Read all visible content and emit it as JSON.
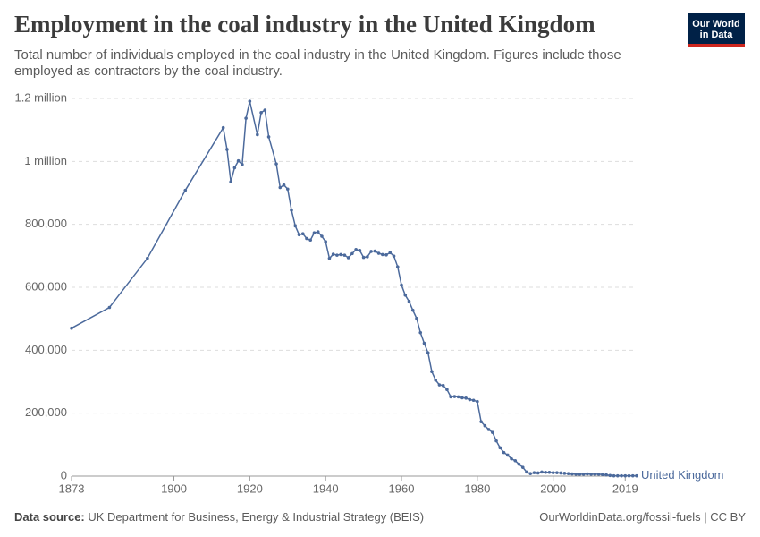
{
  "chart_data": {
    "type": "line",
    "title": "Employment in the coal industry in the United Kingdom",
    "subtitle": "Total number of individuals employed in the coal industry in the United Kingdom. Figures include those employed as contractors by the coal industry.",
    "logo": [
      "Our World",
      "in Data"
    ],
    "source_label": "Data source:",
    "source": "UK Department for Business, Energy & Industrial Strategy (BEIS)",
    "footer": "OurWorldinData.org/fossil-fuels | CC BY",
    "x": [
      1873,
      1883,
      1893,
      1903,
      1913,
      1914,
      1915,
      1916,
      1917,
      1918,
      1919,
      1920,
      1922,
      1923,
      1924,
      1925,
      1927,
      1928,
      1929,
      1930,
      1931,
      1932,
      1933,
      1934,
      1935,
      1936,
      1937,
      1938,
      1939,
      1940,
      1941,
      1942,
      1943,
      1944,
      1945,
      1946,
      1947,
      1948,
      1949,
      1950,
      1951,
      1952,
      1953,
      1954,
      1955,
      1956,
      1957,
      1958,
      1959,
      1960,
      1961,
      1962,
      1963,
      1964,
      1965,
      1966,
      1967,
      1968,
      1969,
      1970,
      1971,
      1972,
      1973,
      1974,
      1975,
      1976,
      1977,
      1978,
      1979,
      1980,
      1981,
      1982,
      1983,
      1984,
      1985,
      1986,
      1987,
      1988,
      1989,
      1990,
      1991,
      1992,
      1993,
      1994,
      1995,
      1996,
      1997,
      1998,
      1999,
      2000,
      2001,
      2002,
      2003,
      2004,
      2005,
      2006,
      2007,
      2008,
      2009,
      2010,
      2011,
      2012,
      2013,
      2014,
      2015,
      2016,
      2017,
      2018,
      2019,
      2020,
      2021,
      2022
    ],
    "series": [
      {
        "name": "United Kingdom",
        "color": "#4c6a9c",
        "values": [
          470000,
          536000,
          692000,
          908000,
          1107000,
          1038000,
          935000,
          980000,
          1002000,
          990000,
          1137000,
          1191000,
          1085000,
          1155000,
          1163000,
          1078000,
          992000,
          917000,
          925000,
          912000,
          845000,
          795000,
          767000,
          770000,
          755000,
          750000,
          773000,
          776000,
          762000,
          745000,
          692000,
          705000,
          702000,
          704000,
          702000,
          694000,
          707000,
          720000,
          717000,
          695000,
          697000,
          714000,
          715000,
          708000,
          704000,
          703000,
          710000,
          699000,
          665000,
          607000,
          575000,
          555000,
          527000,
          501000,
          456000,
          422000,
          392000,
          332000,
          305000,
          290000,
          288000,
          275000,
          252000,
          253000,
          252000,
          249000,
          248000,
          243000,
          241000,
          237000,
          173000,
          160000,
          148000,
          139000,
          112000,
          90000,
          75000,
          67000,
          55000,
          49000,
          38000,
          28000,
          13000,
          8000,
          11000,
          10000,
          13000,
          12000,
          12000,
          11000,
          11000,
          10000,
          9000,
          8000,
          7000,
          6000,
          6000,
          6000,
          7000,
          6000,
          6000,
          6000,
          5000,
          4000,
          2000,
          1000,
          1000,
          1000,
          1000,
          1000,
          1000,
          1000
        ]
      }
    ],
    "xlim": [
      1873,
      2022
    ],
    "xticks": [
      1873,
      1900,
      1920,
      1940,
      1960,
      1980,
      2000,
      2019
    ],
    "ylim": [
      0,
      1200000
    ],
    "yticks": [
      0,
      {
        "value": 200000,
        "label": "200,000"
      },
      {
        "value": 400000,
        "label": "400,000"
      },
      {
        "value": 600000,
        "label": "600,000"
      },
      {
        "value": 800000,
        "label": "800,000"
      },
      {
        "value": 1000000,
        "label": "1 million"
      },
      {
        "value": 1200000,
        "label": "1.2 million"
      }
    ],
    "grid": true
  }
}
